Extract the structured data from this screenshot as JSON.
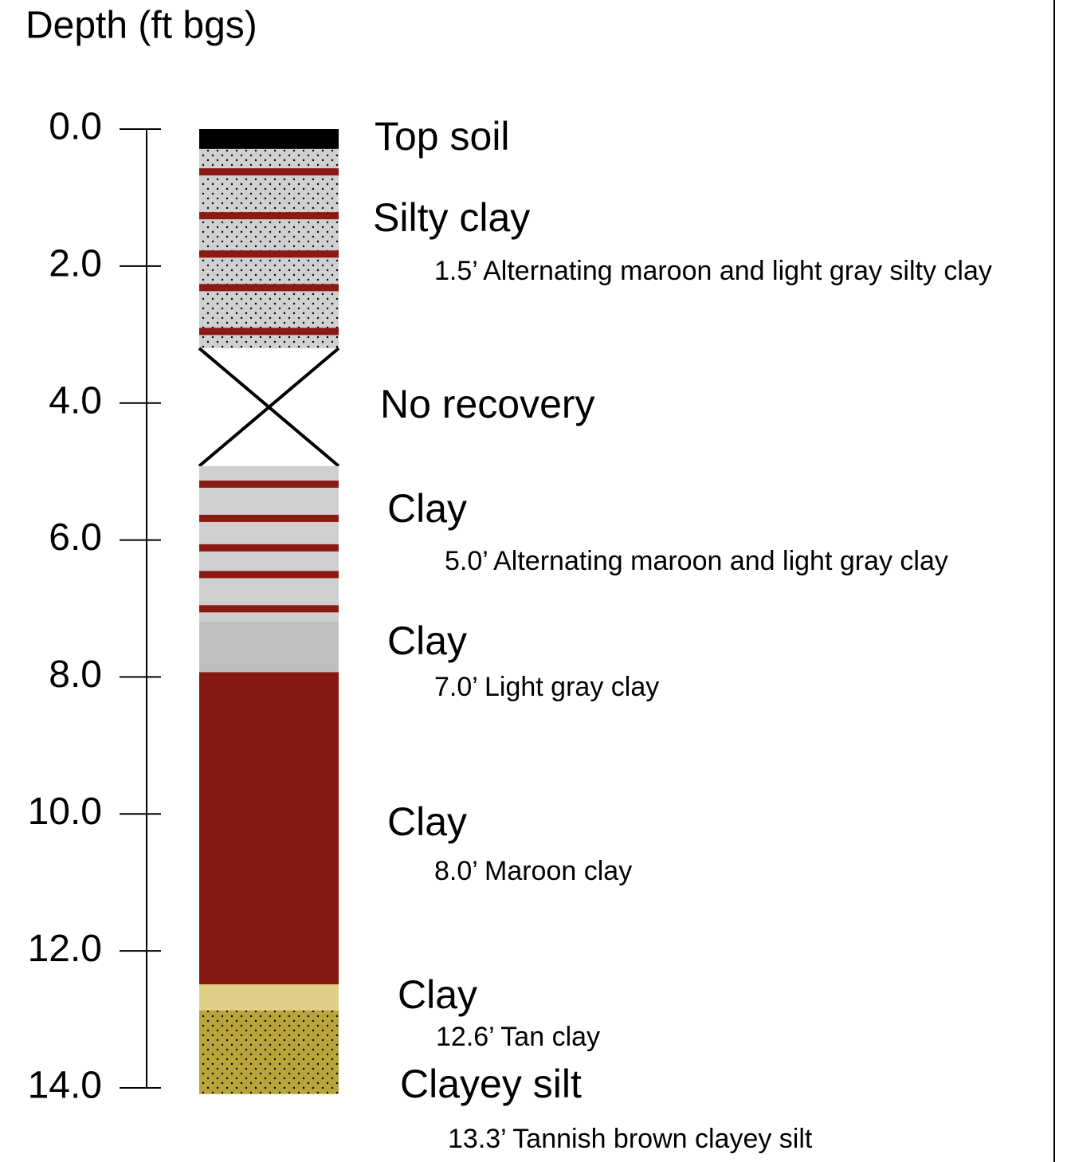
{
  "depth_axis": {
    "label": "Depth (ft bgs)",
    "lim": [
      0,
      14
    ],
    "ticks": [
      {
        "value": 0,
        "label": "0.0"
      },
      {
        "value": 2,
        "label": "2.0"
      },
      {
        "value": 4,
        "label": "4.0"
      },
      {
        "value": 6,
        "label": "6.0"
      },
      {
        "value": 8,
        "label": "8.0"
      },
      {
        "value": 10,
        "label": "10.0"
      },
      {
        "value": 12,
        "label": "12.0"
      },
      {
        "value": 14,
        "label": "14.0"
      }
    ]
  },
  "layers": [
    {
      "name": "Top soil",
      "top": 0,
      "bottom": 0.29,
      "color": "#000000"
    },
    {
      "name": "Silty clay",
      "description": "1.5’ Alternating maroon and light gray silty clay",
      "top": 0.29,
      "bottom": 3.2,
      "color": "#d0d0d0",
      "pattern": "dots",
      "stripe_color": "#8b1a14",
      "stripes": [
        0.63,
        1.27,
        1.83,
        2.32,
        2.96
      ]
    },
    {
      "name": "No recovery",
      "top": 3.2,
      "bottom": 4.92,
      "recovery": false
    },
    {
      "name": "Clay",
      "description": "5.0’ Alternating maroon and light gray clay",
      "top": 4.92,
      "bottom": 7.19,
      "color": "#d0cfd0",
      "stripe_color": "#8b1a14",
      "stripes": [
        5.19,
        5.69,
        6.12,
        6.51,
        7.01
      ]
    },
    {
      "name": "Clay",
      "description": "7.0’ Light gray clay",
      "top": 7.19,
      "bottom": 7.93,
      "color": "#bfbfbf"
    },
    {
      "name": "Clay",
      "description": "8.0’ Maroon clay",
      "top": 7.93,
      "bottom": 12.49,
      "color": "#851812"
    },
    {
      "name": "Clay",
      "description": "12.6’ Tan clay",
      "top": 12.49,
      "bottom": 12.87,
      "color": "#e0d087"
    },
    {
      "name": "Clayey silt",
      "description": "13.3’ Tannish brown clayey silt",
      "top": 12.87,
      "bottom": 14.09,
      "color": "#b8a43a",
      "pattern": "dots"
    }
  ]
}
